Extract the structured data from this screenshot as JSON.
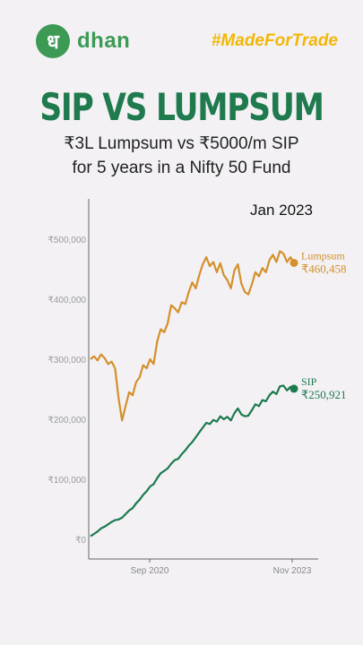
{
  "brand": {
    "logo_glyph": "ध",
    "name": "dhan",
    "hashtag": "#MadeForTrade",
    "color": "#3c9a55"
  },
  "headline": "SIP VS LUMPSUM",
  "subtitle": {
    "line1": "₹3L Lumpsum vs ₹5000/m SIP",
    "line2": "for 5 years in a Nifty 50 Fund"
  },
  "chart_data": {
    "type": "line",
    "date_label": "Jan 2023",
    "x_ticks": [
      "Sep 2020",
      "Nov 2023"
    ],
    "y_ticks": [
      "₹0",
      "₹100,000",
      "₹200,000",
      "₹300,000",
      "₹400,000",
      "₹500,000"
    ],
    "ylim": [
      0,
      550000
    ],
    "x_start": "Jan 2019",
    "x_end": "Jan 2024",
    "x_date_range_months": [
      0,
      60
    ],
    "grid": false,
    "series": [
      {
        "name": "Lumpsum",
        "label_value": "₹460,458",
        "color": "#d4902a",
        "points": [
          [
            0,
            300000
          ],
          [
            1,
            305000
          ],
          [
            2,
            298000
          ],
          [
            3,
            308000
          ],
          [
            4,
            302000
          ],
          [
            5,
            292000
          ],
          [
            6,
            296000
          ],
          [
            7,
            285000
          ],
          [
            8,
            235000
          ],
          [
            9,
            198000
          ],
          [
            10,
            222000
          ],
          [
            11,
            245000
          ],
          [
            12,
            240000
          ],
          [
            13,
            262000
          ],
          [
            14,
            270000
          ],
          [
            15,
            290000
          ],
          [
            16,
            285000
          ],
          [
            17,
            300000
          ],
          [
            18,
            292000
          ],
          [
            19,
            330000
          ],
          [
            20,
            350000
          ],
          [
            21,
            345000
          ],
          [
            22,
            360000
          ],
          [
            23,
            390000
          ],
          [
            24,
            385000
          ],
          [
            25,
            378000
          ],
          [
            26,
            395000
          ],
          [
            27,
            392000
          ],
          [
            28,
            412000
          ],
          [
            29,
            428000
          ],
          [
            30,
            418000
          ],
          [
            31,
            440000
          ],
          [
            32,
            458000
          ],
          [
            33,
            470000
          ],
          [
            34,
            455000
          ],
          [
            35,
            462000
          ],
          [
            36,
            445000
          ],
          [
            37,
            460000
          ],
          [
            38,
            440000
          ],
          [
            39,
            432000
          ],
          [
            40,
            418000
          ],
          [
            41,
            448000
          ],
          [
            42,
            458000
          ],
          [
            43,
            426000
          ],
          [
            44,
            412000
          ],
          [
            45,
            408000
          ],
          [
            46,
            425000
          ],
          [
            47,
            445000
          ],
          [
            48,
            438000
          ],
          [
            49,
            452000
          ],
          [
            50,
            445000
          ],
          [
            51,
            465000
          ],
          [
            52,
            474000
          ],
          [
            53,
            462000
          ],
          [
            54,
            480000
          ],
          [
            55,
            476000
          ],
          [
            56,
            462000
          ],
          [
            57,
            470000
          ],
          [
            58,
            460458
          ]
        ]
      },
      {
        "name": "SIP",
        "label_value": "₹250,921",
        "color": "#1b7a4e",
        "points": [
          [
            0,
            5000
          ],
          [
            1,
            9000
          ],
          [
            2,
            13000
          ],
          [
            3,
            18000
          ],
          [
            4,
            21000
          ],
          [
            5,
            25000
          ],
          [
            6,
            29000
          ],
          [
            7,
            32000
          ],
          [
            8,
            33000
          ],
          [
            9,
            36000
          ],
          [
            10,
            42000
          ],
          [
            11,
            48000
          ],
          [
            12,
            52000
          ],
          [
            13,
            60000
          ],
          [
            14,
            66000
          ],
          [
            15,
            74000
          ],
          [
            16,
            80000
          ],
          [
            17,
            88000
          ],
          [
            18,
            92000
          ],
          [
            19,
            102000
          ],
          [
            20,
            110000
          ],
          [
            21,
            114000
          ],
          [
            22,
            118000
          ],
          [
            23,
            126000
          ],
          [
            24,
            132000
          ],
          [
            25,
            134000
          ],
          [
            26,
            142000
          ],
          [
            27,
            148000
          ],
          [
            28,
            156000
          ],
          [
            29,
            162000
          ],
          [
            30,
            170000
          ],
          [
            31,
            178000
          ],
          [
            32,
            186000
          ],
          [
            33,
            194000
          ],
          [
            34,
            192000
          ],
          [
            35,
            199000
          ],
          [
            36,
            196000
          ],
          [
            37,
            205000
          ],
          [
            38,
            200000
          ],
          [
            39,
            204000
          ],
          [
            40,
            198000
          ],
          [
            41,
            210000
          ],
          [
            42,
            218000
          ],
          [
            43,
            208000
          ],
          [
            44,
            205000
          ],
          [
            45,
            206000
          ],
          [
            46,
            215000
          ],
          [
            47,
            225000
          ],
          [
            48,
            222000
          ],
          [
            49,
            232000
          ],
          [
            50,
            230000
          ],
          [
            51,
            240000
          ],
          [
            52,
            246000
          ],
          [
            53,
            242000
          ],
          [
            54,
            255000
          ],
          [
            55,
            256000
          ],
          [
            56,
            248000
          ],
          [
            57,
            254000
          ],
          [
            58,
            250921
          ]
        ]
      }
    ]
  }
}
